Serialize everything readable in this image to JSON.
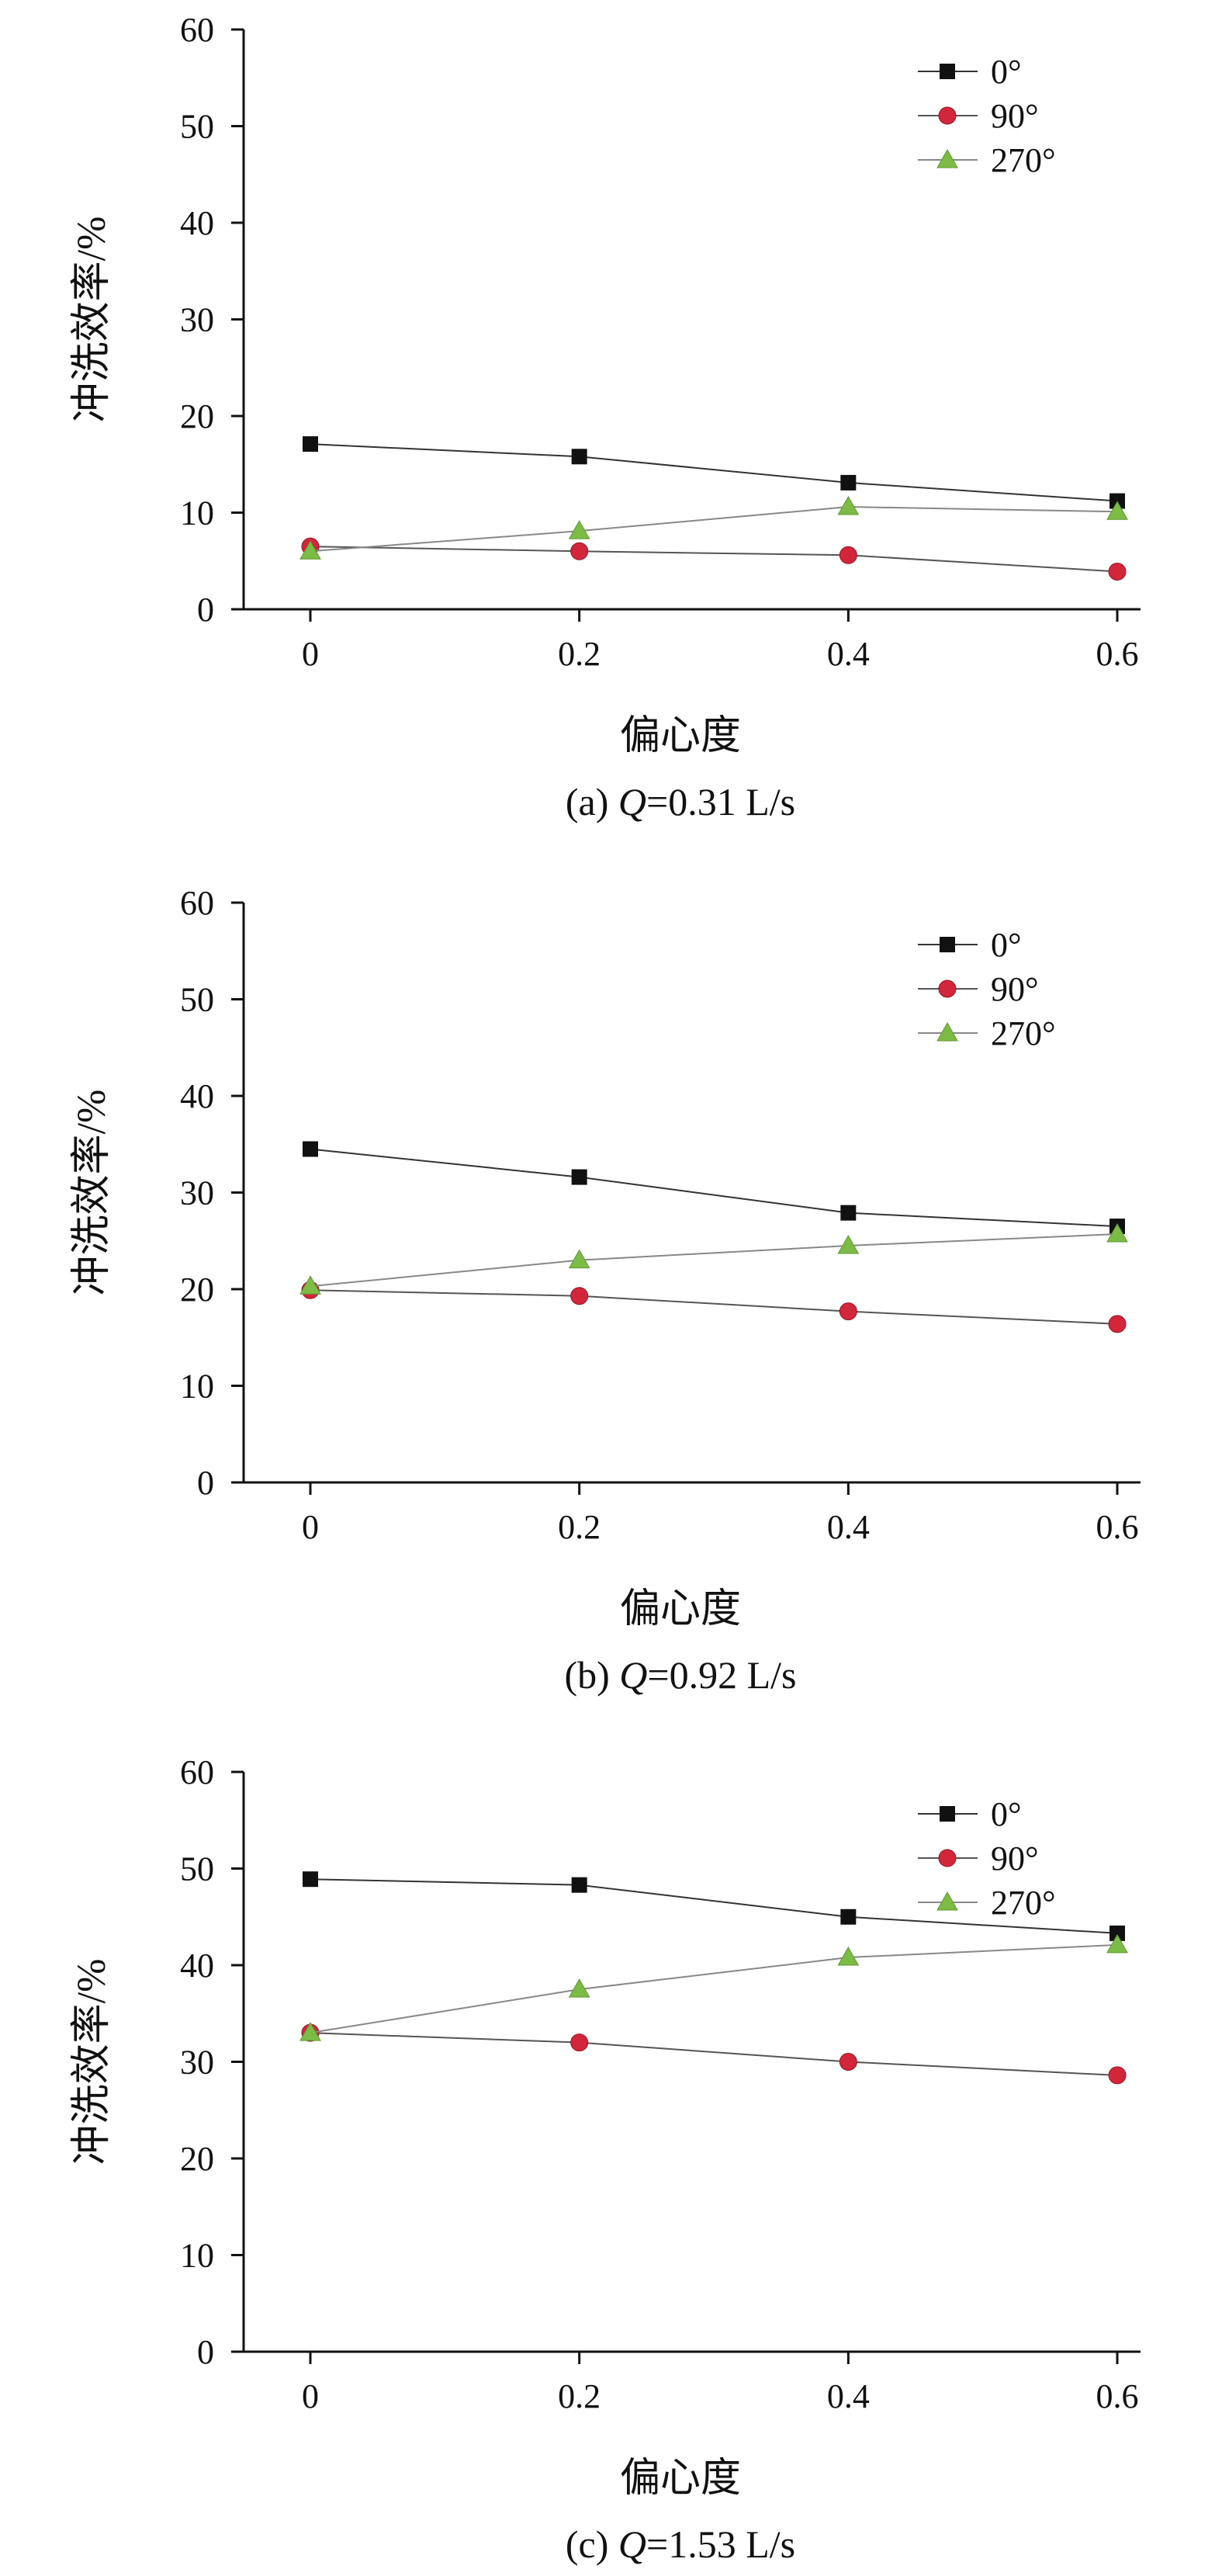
{
  "chart_data": [
    {
      "type": "line",
      "caption": {
        "prefix": "(a) ",
        "var": "Q",
        "rest": "=0.31 L/s"
      },
      "xlabel": "偏心度",
      "ylabel": "冲洗效率/%",
      "x": [
        0,
        0.2,
        0.4,
        0.6
      ],
      "xticks": [
        "0",
        "0.2",
        "0.4",
        "0.6"
      ],
      "ylim": [
        0,
        60
      ],
      "yticks": [
        "0",
        "10",
        "20",
        "30",
        "40",
        "50",
        "60"
      ],
      "legend_position": "top-right",
      "series": [
        {
          "name": "0°",
          "marker": "square",
          "color": "#111111",
          "line_color": "#333333",
          "values": [
            17.1,
            15.8,
            13.1,
            11.2
          ]
        },
        {
          "name": "90°",
          "marker": "circle",
          "color": "#d2263a",
          "line_color": "#555555",
          "values": [
            6.5,
            6.0,
            5.6,
            3.9
          ]
        },
        {
          "name": "270°",
          "marker": "triangle",
          "color": "#7cbb45",
          "line_color": "#888888",
          "values": [
            6.0,
            8.1,
            10.6,
            10.1
          ]
        }
      ]
    },
    {
      "type": "line",
      "caption": {
        "prefix": "(b) ",
        "var": "Q",
        "rest": "=0.92 L/s"
      },
      "xlabel": "偏心度",
      "ylabel": "冲洗效率/%",
      "x": [
        0,
        0.2,
        0.4,
        0.6
      ],
      "xticks": [
        "0",
        "0.2",
        "0.4",
        "0.6"
      ],
      "ylim": [
        0,
        60
      ],
      "yticks": [
        "0",
        "10",
        "20",
        "30",
        "40",
        "50",
        "60"
      ],
      "legend_position": "top-right",
      "series": [
        {
          "name": "0°",
          "marker": "square",
          "color": "#111111",
          "line_color": "#333333",
          "values": [
            34.5,
            31.6,
            27.9,
            26.5
          ]
        },
        {
          "name": "90°",
          "marker": "circle",
          "color": "#d2263a",
          "line_color": "#555555",
          "values": [
            19.9,
            19.3,
            17.7,
            16.4
          ]
        },
        {
          "name": "270°",
          "marker": "triangle",
          "color": "#7cbb45",
          "line_color": "#888888",
          "values": [
            20.3,
            23.0,
            24.5,
            25.7
          ]
        }
      ]
    },
    {
      "type": "line",
      "caption": {
        "prefix": "(c) ",
        "var": "Q",
        "rest": "=1.53 L/s"
      },
      "xlabel": "偏心度",
      "ylabel": "冲洗效率/%",
      "x": [
        0,
        0.2,
        0.4,
        0.6
      ],
      "xticks": [
        "0",
        "0.2",
        "0.4",
        "0.6"
      ],
      "ylim": [
        0,
        60
      ],
      "yticks": [
        "0",
        "10",
        "20",
        "30",
        "40",
        "50",
        "60"
      ],
      "legend_position": "top-right",
      "series": [
        {
          "name": "0°",
          "marker": "square",
          "color": "#111111",
          "line_color": "#333333",
          "values": [
            48.9,
            48.3,
            45.0,
            43.3
          ]
        },
        {
          "name": "90°",
          "marker": "circle",
          "color": "#d2263a",
          "line_color": "#555555",
          "values": [
            33.0,
            32.0,
            30.0,
            28.6
          ]
        },
        {
          "name": "270°",
          "marker": "triangle",
          "color": "#7cbb45",
          "line_color": "#888888",
          "values": [
            33.0,
            37.5,
            40.8,
            42.1
          ]
        }
      ]
    }
  ]
}
